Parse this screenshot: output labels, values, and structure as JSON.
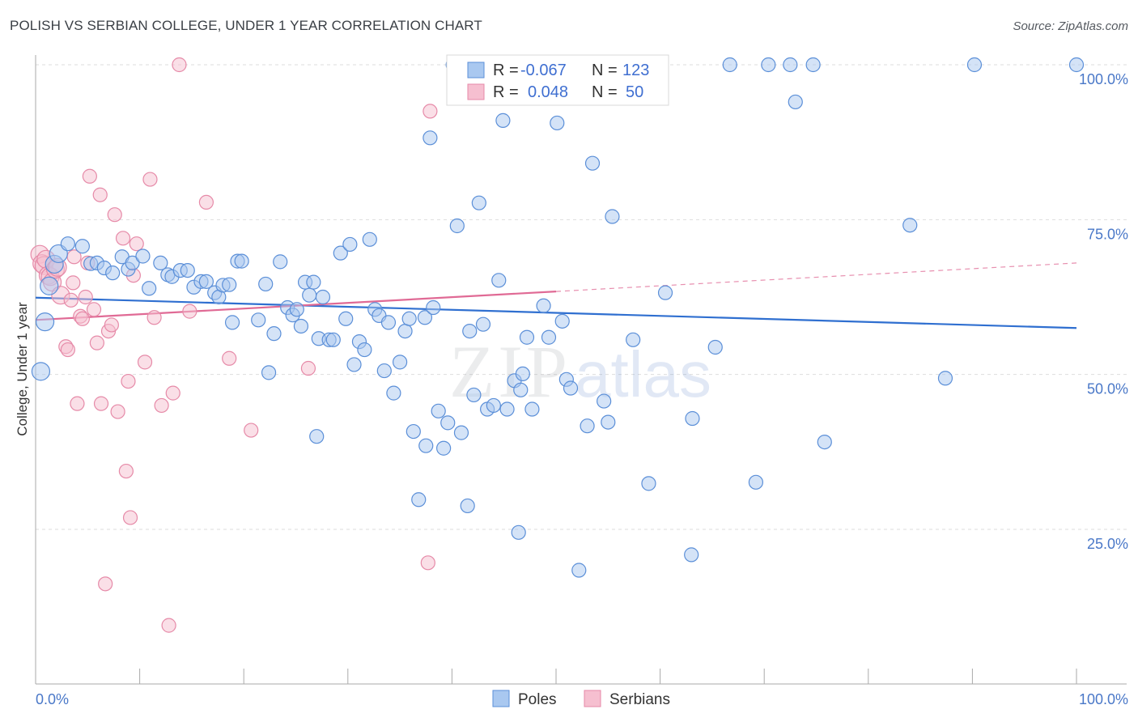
{
  "header": {
    "title": "POLISH VS SERBIAN COLLEGE, UNDER 1 YEAR CORRELATION CHART",
    "source": "Source: ZipAtlas.com"
  },
  "colors": {
    "poles_fill": "#a9c8f0",
    "poles_stroke": "#5b8fd8",
    "poles_line": "#2f6fd0",
    "serbians_fill": "#f6bfd0",
    "serbians_stroke": "#e68aa8",
    "serbians_line": "#e06a95",
    "grid": "#dddddd",
    "tick_text": "#4a78c8"
  },
  "legend": {
    "rows": [
      {
        "r_label": "R =",
        "r_value": "-0.067",
        "n_label": "N =",
        "n_value": "123"
      },
      {
        "r_label": "R =",
        "r_value": "0.048",
        "n_label": "N =",
        "n_value": "50"
      }
    ]
  },
  "watermark": {
    "zip": "ZIP",
    "atlas": "atlas"
  },
  "chart_data": {
    "type": "scatter",
    "title": "POLISH VS SERBIAN COLLEGE, UNDER 1 YEAR CORRELATION CHART",
    "xlabel": "",
    "ylabel": "College, Under 1 year",
    "xlim": [
      0,
      100
    ],
    "ylim": [
      0,
      105
    ],
    "x_tick_labels": [
      "0.0%",
      "100.0%"
    ],
    "y_ticks": [
      {
        "value": 25,
        "label": "25.0%"
      },
      {
        "value": 50,
        "label": "50.0%"
      },
      {
        "value": 75,
        "label": "75.0%"
      },
      {
        "value": 100,
        "label": "100.0%"
      }
    ],
    "grid": true,
    "legend_position": "top-center",
    "series": [
      {
        "name": "Poles",
        "r": -0.067,
        "n": 123,
        "trend": {
          "x": [
            0,
            100
          ],
          "y": [
            62.4,
            57.5
          ],
          "solid_to": 100
        },
        "points": [
          [
            0.5,
            50.5
          ],
          [
            0.9,
            58.5
          ],
          [
            1.3,
            64.3
          ],
          [
            1.8,
            67.8
          ],
          [
            2.2,
            69.5
          ],
          [
            3.1,
            71.1
          ],
          [
            4.5,
            70.7
          ],
          [
            5.3,
            67.9
          ],
          [
            5.9,
            68.0
          ],
          [
            6.6,
            67.2
          ],
          [
            7.4,
            66.4
          ],
          [
            8.3,
            69.0
          ],
          [
            8.9,
            67.0
          ],
          [
            9.3,
            68.0
          ],
          [
            10.3,
            69.1
          ],
          [
            10.9,
            63.9
          ],
          [
            12.0,
            68.0
          ],
          [
            12.7,
            66.1
          ],
          [
            13.1,
            65.8
          ],
          [
            13.9,
            66.8
          ],
          [
            14.6,
            66.8
          ],
          [
            15.2,
            64.1
          ],
          [
            15.9,
            65.0
          ],
          [
            16.4,
            65.0
          ],
          [
            17.2,
            63.2
          ],
          [
            17.6,
            62.5
          ],
          [
            18.0,
            64.4
          ],
          [
            18.6,
            64.5
          ],
          [
            18.9,
            58.4
          ],
          [
            19.4,
            68.3
          ],
          [
            19.8,
            68.3
          ],
          [
            21.4,
            58.8
          ],
          [
            22.1,
            64.6
          ],
          [
            22.4,
            50.3
          ],
          [
            22.9,
            56.6
          ],
          [
            23.5,
            68.2
          ],
          [
            24.2,
            60.8
          ],
          [
            24.7,
            59.6
          ],
          [
            25.1,
            60.5
          ],
          [
            25.5,
            57.8
          ],
          [
            25.9,
            64.9
          ],
          [
            26.3,
            62.8
          ],
          [
            26.7,
            64.9
          ],
          [
            27.2,
            55.8
          ],
          [
            27.6,
            62.5
          ],
          [
            28.2,
            55.6
          ],
          [
            28.6,
            55.6
          ],
          [
            29.3,
            69.6
          ],
          [
            29.8,
            59.0
          ],
          [
            30.2,
            71.0
          ],
          [
            30.6,
            51.6
          ],
          [
            31.1,
            55.3
          ],
          [
            31.6,
            54.0
          ],
          [
            32.1,
            71.8
          ],
          [
            32.6,
            60.5
          ],
          [
            33.0,
            59.5
          ],
          [
            33.5,
            50.6
          ],
          [
            33.9,
            58.4
          ],
          [
            34.4,
            47.0
          ],
          [
            35.0,
            52.0
          ],
          [
            35.5,
            57.0
          ],
          [
            35.9,
            59.0
          ],
          [
            36.3,
            40.8
          ],
          [
            36.8,
            29.8
          ],
          [
            37.4,
            59.2
          ],
          [
            37.9,
            88.2
          ],
          [
            38.2,
            60.8
          ],
          [
            38.7,
            44.1
          ],
          [
            39.2,
            38.1
          ],
          [
            39.6,
            42.2
          ],
          [
            40.1,
            100.0
          ],
          [
            40.5,
            74.0
          ],
          [
            40.9,
            40.6
          ],
          [
            41.7,
            57.0
          ],
          [
            42.1,
            46.7
          ],
          [
            42.6,
            77.7
          ],
          [
            43.0,
            58.1
          ],
          [
            43.4,
            44.4
          ],
          [
            44.0,
            45.0
          ],
          [
            44.5,
            65.2
          ],
          [
            44.9,
            91.0
          ],
          [
            45.3,
            44.4
          ],
          [
            46.0,
            49.0
          ],
          [
            46.4,
            24.5
          ],
          [
            46.8,
            50.1
          ],
          [
            47.2,
            56.0
          ],
          [
            47.7,
            44.4
          ],
          [
            48.3,
            100.0
          ],
          [
            48.8,
            61.1
          ],
          [
            49.3,
            56.0
          ],
          [
            50.1,
            90.6
          ],
          [
            50.6,
            58.6
          ],
          [
            51.0,
            49.2
          ],
          [
            51.4,
            47.8
          ],
          [
            52.2,
            18.4
          ],
          [
            53.0,
            41.7
          ],
          [
            53.5,
            84.1
          ],
          [
            54.1,
            100.0
          ],
          [
            54.6,
            45.7
          ],
          [
            55.0,
            42.3
          ],
          [
            55.4,
            75.5
          ],
          [
            57.4,
            55.6
          ],
          [
            58.9,
            32.4
          ],
          [
            60.0,
            100.0
          ],
          [
            60.5,
            63.2
          ],
          [
            63.1,
            42.9
          ],
          [
            65.3,
            54.4
          ],
          [
            66.7,
            100.0
          ],
          [
            69.2,
            32.6
          ],
          [
            70.4,
            100.0
          ],
          [
            72.5,
            100.0
          ],
          [
            73.0,
            94.0
          ],
          [
            74.7,
            100.0
          ],
          [
            75.8,
            39.1
          ],
          [
            84.0,
            74.1
          ],
          [
            87.4,
            49.4
          ],
          [
            90.2,
            100.0
          ],
          [
            100.0,
            100.0
          ],
          [
            63.0,
            20.9
          ],
          [
            37.5,
            38.5
          ],
          [
            46.6,
            47.5
          ],
          [
            27.0,
            40.0
          ],
          [
            41.5,
            28.8
          ]
        ]
      },
      {
        "name": "Serbians",
        "r": 0.048,
        "n": 50,
        "trend": {
          "x": [
            0,
            100
          ],
          "y": [
            58.8,
            68.0
          ],
          "solid_to": 50
        },
        "points": [
          [
            0.4,
            69.4
          ],
          [
            0.6,
            67.9
          ],
          [
            0.8,
            67.6
          ],
          [
            1.0,
            68.6
          ],
          [
            1.2,
            66.0
          ],
          [
            1.4,
            65.8
          ],
          [
            1.6,
            64.9
          ],
          [
            1.9,
            67.0
          ],
          [
            2.1,
            67.3
          ],
          [
            2.4,
            62.8
          ],
          [
            2.9,
            54.5
          ],
          [
            3.1,
            54.0
          ],
          [
            3.4,
            62.0
          ],
          [
            3.6,
            64.8
          ],
          [
            4.0,
            45.3
          ],
          [
            4.3,
            59.4
          ],
          [
            4.5,
            59.0
          ],
          [
            4.8,
            62.5
          ],
          [
            5.2,
            82.0
          ],
          [
            5.6,
            60.5
          ],
          [
            5.9,
            55.1
          ],
          [
            6.3,
            45.3
          ],
          [
            6.7,
            16.2
          ],
          [
            7.0,
            57.0
          ],
          [
            7.3,
            58.0
          ],
          [
            7.6,
            75.8
          ],
          [
            7.9,
            44.0
          ],
          [
            8.4,
            72.0
          ],
          [
            8.7,
            34.4
          ],
          [
            8.9,
            48.9
          ],
          [
            9.1,
            26.9
          ],
          [
            9.4,
            66.0
          ],
          [
            9.7,
            71.1
          ],
          [
            10.5,
            52.0
          ],
          [
            11.0,
            81.5
          ],
          [
            11.4,
            59.2
          ],
          [
            12.1,
            45.0
          ],
          [
            12.8,
            9.5
          ],
          [
            13.2,
            47.0
          ],
          [
            13.8,
            100.0
          ],
          [
            14.8,
            60.2
          ],
          [
            16.4,
            77.8
          ],
          [
            18.6,
            52.6
          ],
          [
            20.7,
            41.0
          ],
          [
            26.2,
            51.0
          ],
          [
            37.7,
            19.6
          ],
          [
            37.9,
            92.5
          ],
          [
            6.2,
            79.0
          ],
          [
            5.0,
            68.0
          ],
          [
            3.7,
            69.0
          ]
        ]
      }
    ]
  }
}
